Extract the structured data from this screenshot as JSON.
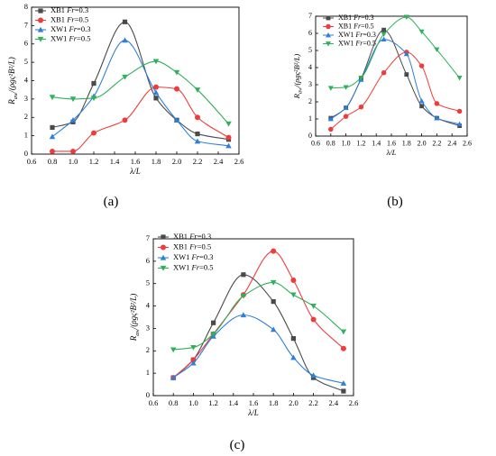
{
  "figure": {
    "panel_labels": [
      "(a)",
      "(b)",
      "(c)"
    ]
  },
  "colors": {
    "XB1_Fr03": "#4a4a4a",
    "XB1_Fr05": "#ef3b3b",
    "XW1_Fr03": "#2e7fd9",
    "XW1_Fr05": "#2fb05a"
  },
  "chart_data": [
    {
      "type": "line",
      "panel": "(a)",
      "ylabel": "R_aw/(ρgς²B²/L)",
      "xlabel": "λ/L",
      "xlim": [
        0.6,
        2.6
      ],
      "ylim": [
        0,
        8
      ],
      "x_ticks": [
        "0.6",
        "0.8",
        "1.0",
        "1.2",
        "1.4",
        "1.6",
        "1.8",
        "2.0",
        "2.2",
        "2.4",
        "2.6"
      ],
      "y_ticks": [
        "0",
        "1",
        "2",
        "3",
        "4",
        "5",
        "6",
        "7",
        "8"
      ],
      "legend": "top-left",
      "grid": false,
      "series": [
        {
          "name": "XB1 Fr=0.3",
          "marker": "square",
          "x": [
            0.8,
            1.0,
            1.2,
            1.5,
            1.8,
            2.0,
            2.2,
            2.5
          ],
          "values": [
            1.45,
            1.75,
            3.85,
            7.2,
            3.05,
            1.85,
            1.1,
            0.8
          ]
        },
        {
          "name": "XB1 Fr=0.5",
          "marker": "circle",
          "x": [
            0.8,
            1.0,
            1.2,
            1.5,
            1.8,
            2.0,
            2.2,
            2.5
          ],
          "values": [
            0.15,
            0.15,
            1.15,
            1.85,
            3.65,
            3.55,
            2.0,
            0.9
          ]
        },
        {
          "name": "XW1 Fr=0.3",
          "marker": "triangle-up",
          "x": [
            0.8,
            1.0,
            1.2,
            1.5,
            1.8,
            2.0,
            2.2,
            2.5
          ],
          "values": [
            0.95,
            1.85,
            3.15,
            6.2,
            3.35,
            1.85,
            0.7,
            0.45
          ]
        },
        {
          "name": "XW1 Fr=0.5",
          "marker": "triangle-down",
          "x": [
            0.8,
            1.0,
            1.2,
            1.5,
            1.8,
            2.0,
            2.2,
            2.5
          ],
          "values": [
            3.1,
            3.0,
            3.05,
            4.2,
            5.05,
            4.45,
            3.5,
            1.65
          ]
        }
      ]
    },
    {
      "type": "line",
      "panel": "(b)",
      "ylabel": "R_aw/(ρgς²B²/L)",
      "xlabel": "λ/L",
      "xlim": [
        0.6,
        2.6
      ],
      "ylim": [
        0,
        7
      ],
      "x_ticks": [
        "0.6",
        "0.8",
        "1.0",
        "1.2",
        "1.4",
        "1.6",
        "1.8",
        "2.0",
        "2.2",
        "2.4",
        "2.6"
      ],
      "y_ticks": [
        "0",
        "1",
        "2",
        "3",
        "4",
        "5",
        "6",
        "7"
      ],
      "legend": "top-left",
      "grid": false,
      "series": [
        {
          "name": "XB1 Fr=0.3",
          "marker": "square",
          "x": [
            0.8,
            1.0,
            1.2,
            1.5,
            1.8,
            2.0,
            2.2,
            2.5
          ],
          "values": [
            1.05,
            1.65,
            3.35,
            6.2,
            3.6,
            1.75,
            1.05,
            0.6
          ]
        },
        {
          "name": "XB1 Fr=0.5",
          "marker": "circle",
          "x": [
            0.8,
            1.0,
            1.2,
            1.5,
            1.8,
            2.0,
            2.2,
            2.5
          ],
          "values": [
            0.4,
            1.15,
            1.7,
            3.7,
            4.9,
            4.1,
            1.9,
            1.45
          ]
        },
        {
          "name": "XW1 Fr=0.3",
          "marker": "triangle-up",
          "x": [
            0.8,
            1.0,
            1.2,
            1.5,
            1.8,
            2.0,
            2.2,
            2.5
          ],
          "values": [
            1.0,
            1.65,
            3.3,
            5.65,
            4.8,
            2.05,
            1.05,
            0.7
          ]
        },
        {
          "name": "XW1 Fr=0.5",
          "marker": "triangle-down",
          "x": [
            0.8,
            1.0,
            1.2,
            1.5,
            1.8,
            2.0,
            2.2,
            2.5
          ],
          "values": [
            2.8,
            2.85,
            3.4,
            5.95,
            6.95,
            6.1,
            5.05,
            3.4
          ]
        }
      ]
    },
    {
      "type": "line",
      "panel": "(c)",
      "ylabel": "R_aw/(ρgς²B²/L)",
      "xlabel": "λ/L",
      "xlim": [
        0.6,
        2.6
      ],
      "ylim": [
        0,
        7
      ],
      "x_ticks": [
        "0.6",
        "0.8",
        "1.0",
        "1.2",
        "1.4",
        "1.6",
        "1.8",
        "2.0",
        "2.2",
        "2.4",
        "2.6"
      ],
      "y_ticks": [
        "0",
        "1",
        "2",
        "3",
        "4",
        "5",
        "6",
        "7"
      ],
      "legend": "top-left",
      "grid": false,
      "series": [
        {
          "name": "XB1 Fr=0.3",
          "marker": "square",
          "x": [
            0.8,
            1.0,
            1.2,
            1.5,
            1.8,
            2.0,
            2.2,
            2.5
          ],
          "values": [
            0.8,
            1.6,
            3.25,
            5.4,
            4.2,
            2.55,
            0.8,
            0.2
          ]
        },
        {
          "name": "XB1 Fr=0.5",
          "marker": "circle",
          "x": [
            0.8,
            1.0,
            1.2,
            1.5,
            1.8,
            2.0,
            2.2,
            2.5
          ],
          "values": [
            0.8,
            1.6,
            2.75,
            4.5,
            6.45,
            5.15,
            3.4,
            2.1
          ]
        },
        {
          "name": "XW1 Fr=0.3",
          "marker": "triangle-up",
          "x": [
            0.8,
            1.0,
            1.2,
            1.5,
            1.8,
            2.0,
            2.2,
            2.5
          ],
          "values": [
            0.8,
            1.45,
            2.65,
            3.6,
            2.95,
            1.7,
            0.9,
            0.55
          ]
        },
        {
          "name": "XW1 Fr=0.5",
          "marker": "triangle-down",
          "x": [
            0.8,
            1.0,
            1.2,
            1.5,
            1.8,
            2.0,
            2.2,
            2.5
          ],
          "values": [
            2.05,
            2.15,
            2.75,
            4.45,
            5.05,
            4.5,
            4.0,
            2.85
          ]
        }
      ]
    }
  ]
}
